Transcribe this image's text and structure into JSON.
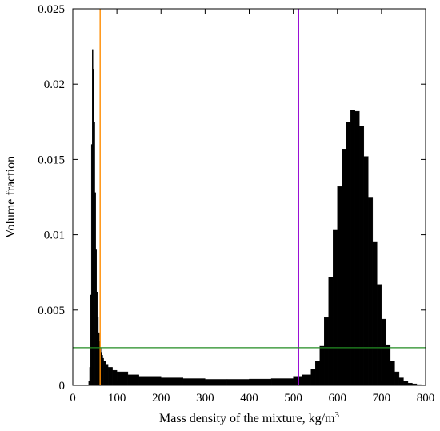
{
  "chart_data": {
    "type": "bar",
    "title": "",
    "xlabel": "Mass density of the mixture, kg/m",
    "xlabel_superscript": "3",
    "ylabel": "Volume fraction",
    "xlim": [
      0,
      800
    ],
    "ylim": [
      0,
      0.025
    ],
    "xticks": [
      0,
      100,
      200,
      300,
      400,
      500,
      600,
      700,
      800
    ],
    "yticks": [
      0,
      0.005,
      0.01,
      0.015,
      0.02,
      0.025
    ],
    "ytick_labels": [
      "0",
      "0.005",
      "0.01",
      "0.015",
      "0.02",
      "0.025"
    ],
    "grid": false,
    "legend": "none",
    "bar_color": "#000000",
    "histogram": {
      "x": [
        36,
        38,
        40,
        42,
        44,
        46,
        48,
        50,
        52,
        54,
        56,
        58,
        60,
        62,
        64,
        66,
        68,
        70,
        75,
        80,
        90,
        100,
        125,
        150,
        200,
        250,
        300,
        350,
        400,
        450,
        500,
        520,
        540,
        550,
        560,
        570,
        580,
        590,
        600,
        610,
        620,
        630,
        640,
        650,
        660,
        670,
        680,
        690,
        700,
        710,
        720,
        730,
        740,
        750,
        760,
        770,
        780,
        790
      ],
      "values": [
        0.0003,
        0.0012,
        0.006,
        0.016,
        0.0223,
        0.021,
        0.0175,
        0.0128,
        0.009,
        0.0062,
        0.0045,
        0.0035,
        0.0029,
        0.0025,
        0.0022,
        0.002,
        0.0018,
        0.0016,
        0.0014,
        0.0012,
        0.001,
        0.0009,
        0.0007,
        0.0006,
        0.0005,
        0.00045,
        0.0004,
        0.0004,
        0.00042,
        0.00045,
        0.0006,
        0.0007,
        0.0011,
        0.0016,
        0.0026,
        0.0045,
        0.0072,
        0.0103,
        0.0132,
        0.0157,
        0.0175,
        0.0183,
        0.0182,
        0.0172,
        0.0152,
        0.0125,
        0.0095,
        0.0067,
        0.0044,
        0.0027,
        0.0016,
        0.0009,
        0.0005,
        0.0003,
        0.00015,
        0.0001,
        5e-05,
        2e-05
      ]
    },
    "reference_lines": [
      {
        "orientation": "vertical",
        "x": 62,
        "color": "#ff8c00"
      },
      {
        "orientation": "vertical",
        "x": 512,
        "color": "#9400d3"
      },
      {
        "orientation": "horizontal",
        "y": 0.0025,
        "color": "#228b22"
      }
    ]
  }
}
